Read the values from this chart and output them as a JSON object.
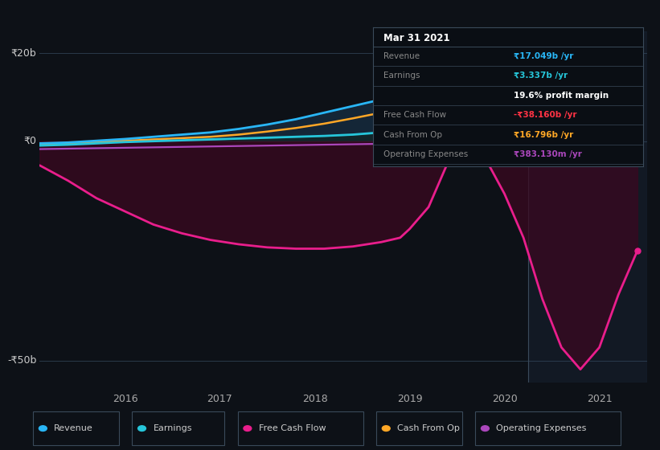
{
  "background_color": "#0d1117",
  "plot_bg_color": "#0d1117",
  "ylim": [
    -55,
    25
  ],
  "xlim": [
    2015.1,
    2021.5
  ],
  "y_labels": [
    {
      "val": 20,
      "text": "₹20b"
    },
    {
      "val": 0,
      "text": "₹0"
    },
    {
      "val": -50,
      "text": "-₹50b"
    }
  ],
  "x_ticks": [
    2016,
    2017,
    2018,
    2019,
    2020,
    2021
  ],
  "tooltip_title": "Mar 31 2021",
  "tooltip_rows": [
    {
      "label": "Revenue",
      "value": "₹17.049b /yr",
      "value_color": "#29b6f6",
      "label_color": "#888888"
    },
    {
      "label": "Earnings",
      "value": "₹3.337b /yr",
      "value_color": "#26c6da",
      "label_color": "#888888"
    },
    {
      "label": "",
      "value": "19.6% profit margin",
      "value_color": "#ffffff",
      "label_color": "#888888"
    },
    {
      "label": "Free Cash Flow",
      "value": "-₹38.160b /yr",
      "value_color": "#ff3344",
      "label_color": "#888888"
    },
    {
      "label": "Cash From Op",
      "value": "₹16.796b /yr",
      "value_color": "#ffa726",
      "label_color": "#888888"
    },
    {
      "label": "Operating Expenses",
      "value": "₹383.130m /yr",
      "value_color": "#ab47bc",
      "label_color": "#888888"
    }
  ],
  "series": {
    "revenue": {
      "color": "#29b6f6",
      "x": [
        2015.1,
        2015.4,
        2015.7,
        2016.0,
        2016.3,
        2016.6,
        2016.9,
        2017.2,
        2017.5,
        2017.8,
        2018.1,
        2018.4,
        2018.7,
        2019.0,
        2019.3,
        2019.6,
        2019.9,
        2020.2,
        2020.5,
        2020.8,
        2021.1,
        2021.4
      ],
      "y": [
        -0.5,
        -0.3,
        0.1,
        0.5,
        1.0,
        1.5,
        2.0,
        2.8,
        3.8,
        5.0,
        6.5,
        8.0,
        9.5,
        11.0,
        12.5,
        14.0,
        15.5,
        17.0,
        18.5,
        19.5,
        20.5,
        21.5
      ]
    },
    "earnings": {
      "color": "#26c6da",
      "x": [
        2015.1,
        2015.4,
        2015.7,
        2016.0,
        2016.3,
        2016.6,
        2016.9,
        2017.2,
        2017.5,
        2017.8,
        2018.1,
        2018.4,
        2018.7,
        2019.0,
        2019.3,
        2019.6,
        2019.9,
        2020.2,
        2020.5,
        2020.8,
        2021.1,
        2021.4
      ],
      "y": [
        -1.0,
        -0.8,
        -0.5,
        -0.2,
        0.0,
        0.2,
        0.4,
        0.6,
        0.8,
        1.0,
        1.2,
        1.5,
        2.0,
        2.5,
        3.5,
        5.5,
        6.5,
        6.0,
        5.5,
        5.2,
        5.0,
        4.8
      ]
    },
    "cash_from_op": {
      "color": "#ffa726",
      "x": [
        2015.1,
        2015.4,
        2015.7,
        2016.0,
        2016.3,
        2016.6,
        2016.9,
        2017.2,
        2017.5,
        2017.8,
        2018.1,
        2018.4,
        2018.7,
        2019.0,
        2019.3,
        2019.6,
        2019.9,
        2020.2,
        2020.5,
        2020.8,
        2021.1,
        2021.4
      ],
      "y": [
        -0.8,
        -0.5,
        -0.2,
        0.1,
        0.4,
        0.7,
        1.0,
        1.5,
        2.2,
        3.0,
        4.0,
        5.2,
        6.5,
        8.0,
        9.5,
        11.5,
        13.5,
        15.5,
        17.5,
        19.5,
        21.5,
        23.5
      ]
    },
    "operating_expenses": {
      "color": "#ab47bc",
      "x": [
        2015.1,
        2015.4,
        2015.7,
        2016.0,
        2016.3,
        2016.6,
        2016.9,
        2017.2,
        2017.5,
        2017.8,
        2018.1,
        2018.4,
        2018.7,
        2019.0,
        2019.3,
        2019.6,
        2019.9,
        2020.2,
        2020.5,
        2020.8,
        2021.1,
        2021.4
      ],
      "y": [
        -1.8,
        -1.7,
        -1.6,
        -1.5,
        -1.4,
        -1.3,
        -1.2,
        -1.1,
        -1.0,
        -0.9,
        -0.8,
        -0.7,
        -0.6,
        -0.5,
        -0.4,
        -0.3,
        -0.3,
        -0.3,
        -0.3,
        -0.3,
        -0.3,
        -0.3
      ]
    },
    "free_cash_flow": {
      "color": "#e91e8c",
      "x": [
        2015.1,
        2015.4,
        2015.7,
        2016.0,
        2016.3,
        2016.6,
        2016.9,
        2017.2,
        2017.5,
        2017.8,
        2018.1,
        2018.4,
        2018.7,
        2018.9,
        2019.0,
        2019.2,
        2019.4,
        2019.6,
        2019.8,
        2020.0,
        2020.2,
        2020.4,
        2020.6,
        2020.8,
        2021.0,
        2021.2,
        2021.4
      ],
      "y": [
        -5.5,
        -9.0,
        -13.0,
        -16.0,
        -19.0,
        -21.0,
        -22.5,
        -23.5,
        -24.2,
        -24.5,
        -24.5,
        -24.0,
        -23.0,
        -22.0,
        -20.0,
        -15.0,
        -5.0,
        2.5,
        -4.0,
        -12.0,
        -22.0,
        -36.0,
        -47.0,
        -52.0,
        -47.0,
        -35.0,
        -25.0
      ]
    }
  },
  "vline_x": 2020.25,
  "legend": [
    {
      "label": "Revenue",
      "color": "#29b6f6"
    },
    {
      "label": "Earnings",
      "color": "#26c6da"
    },
    {
      "label": "Free Cash Flow",
      "color": "#e91e8c"
    },
    {
      "label": "Cash From Op",
      "color": "#ffa726"
    },
    {
      "label": "Operating Expenses",
      "color": "#ab47bc"
    }
  ]
}
